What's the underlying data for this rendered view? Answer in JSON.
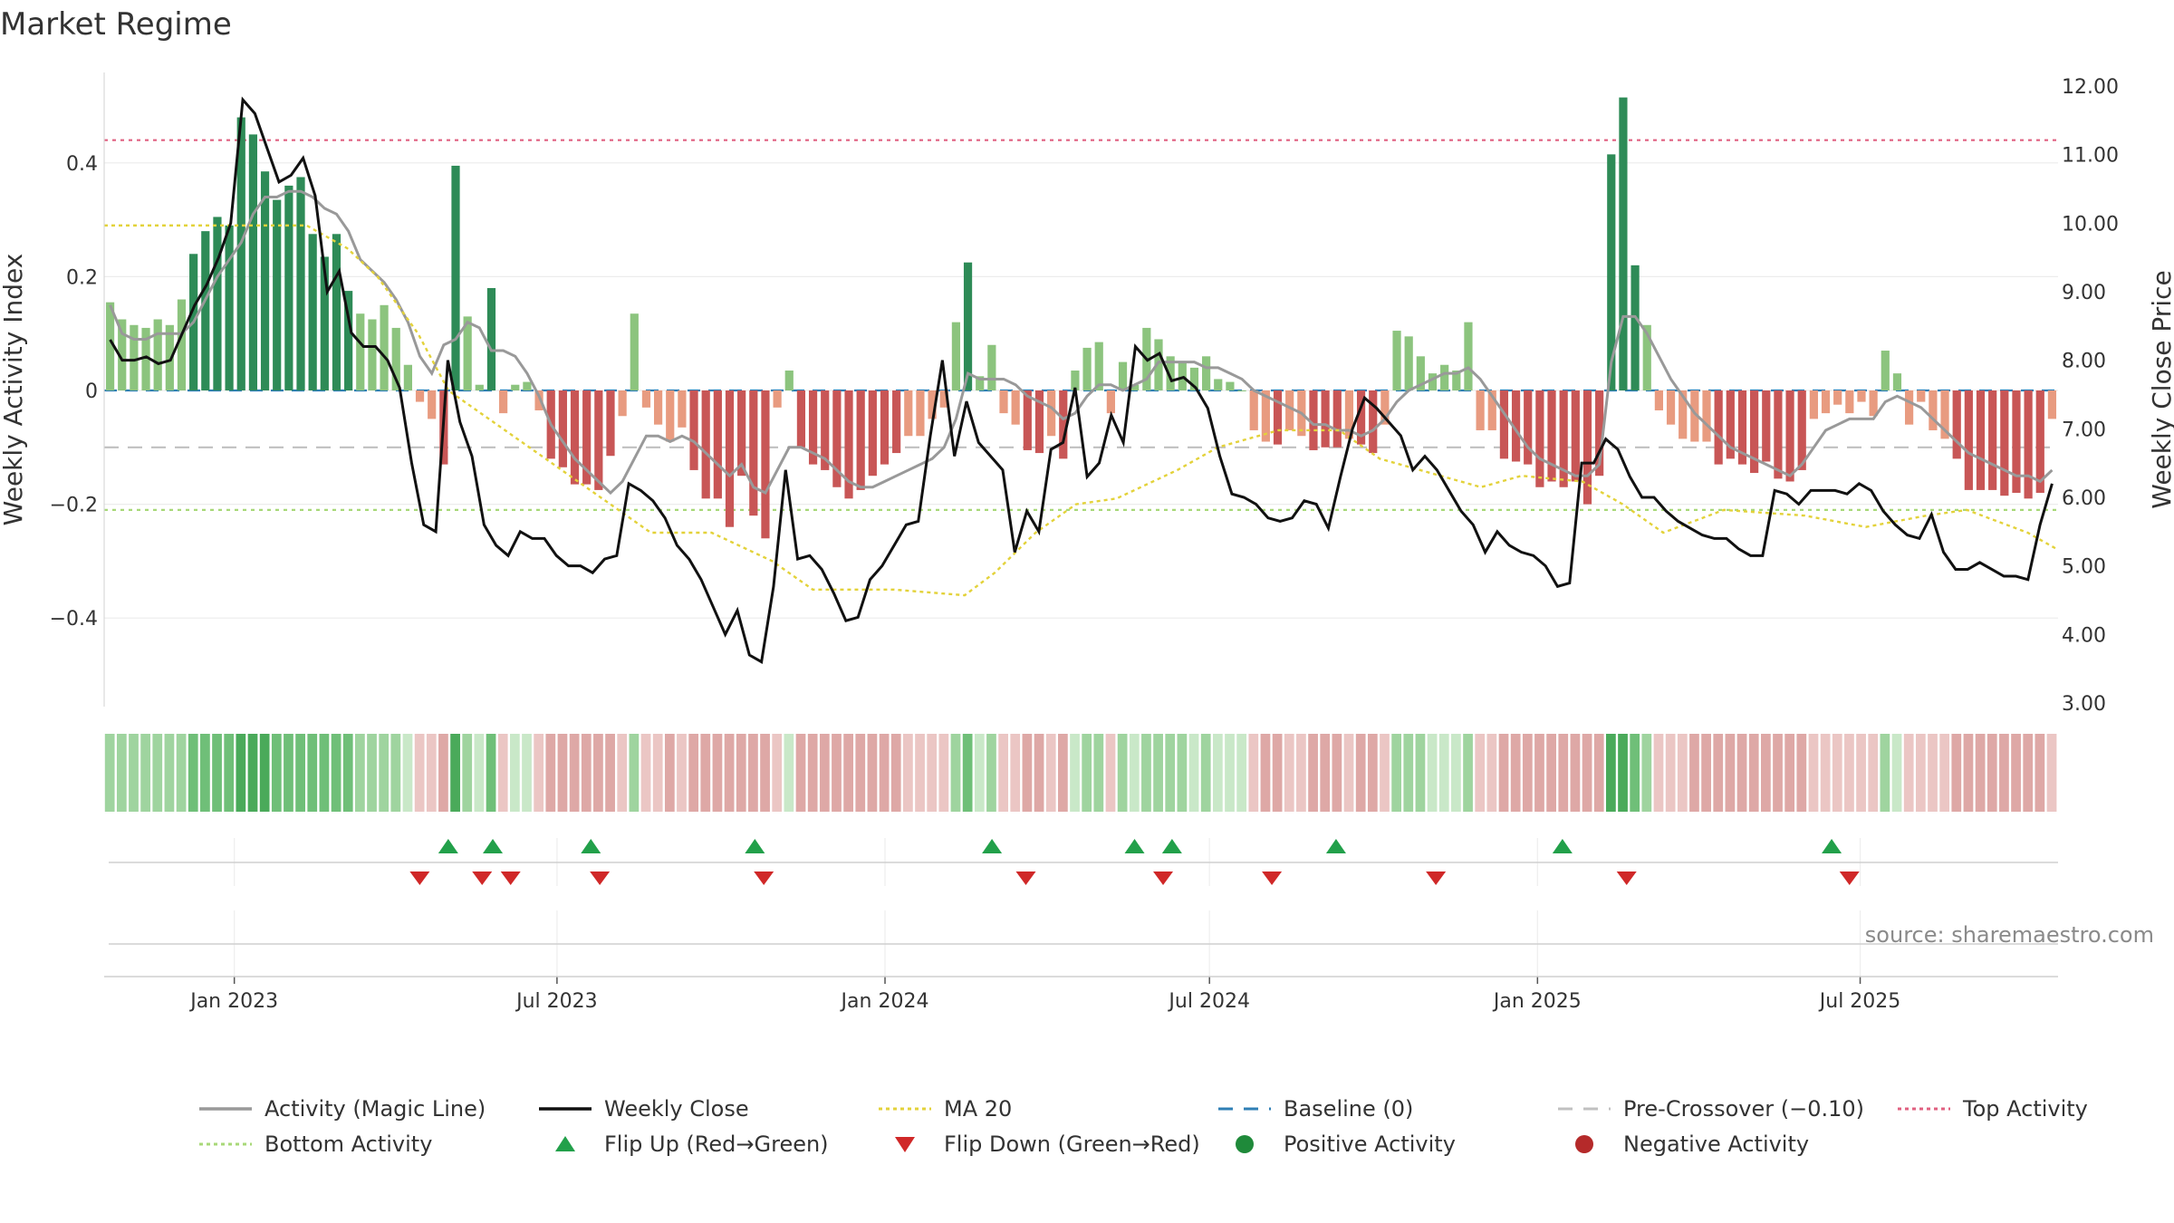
{
  "chart_data": {
    "type": "bar+line",
    "title": "Market Regime",
    "ylabel_left": "Weekly Activity Index",
    "ylabel_right": "Weekly Close Price",
    "source": "source: sharemaestro.com",
    "x_range": [
      "2022-10-20",
      "2025-10-20"
    ],
    "x_ticks": [
      {
        "date": "2023-01-01",
        "label": "Jan 2023"
      },
      {
        "date": "2023-07-01",
        "label": "Jul 2023"
      },
      {
        "date": "2024-01-01",
        "label": "Jan 2024"
      },
      {
        "date": "2024-07-01",
        "label": "Jul 2024"
      },
      {
        "date": "2025-01-01",
        "label": "Jan 2025"
      },
      {
        "date": "2025-07-01",
        "label": "Jul 2025"
      }
    ],
    "left_axis": {
      "ylim": [
        -0.56,
        0.56
      ],
      "ticks": [
        0.4,
        0.2,
        0,
        -0.2,
        -0.4
      ],
      "tick_labels": [
        "0.4",
        "0.2",
        "0",
        "−0.2",
        "−0.4"
      ]
    },
    "right_axis": {
      "ylim": [
        3.0,
        12.2
      ],
      "ticks": [
        12,
        11,
        10,
        9,
        8,
        7,
        6,
        5,
        4,
        3
      ],
      "tick_labels": [
        "12.00",
        "11.00",
        "10.00",
        "9.00",
        "8.00",
        "7.00",
        "6.00",
        "5.00",
        "4.00",
        "3.00"
      ]
    },
    "reference_lines": {
      "top_activity": 0.44,
      "bottom_activity": -0.21,
      "pre_crossover": -0.1,
      "baseline": 0
    },
    "ma20_left_equivalent": [
      [
        0.29,
        0
      ],
      [
        0.29,
        20
      ],
      [
        0.25,
        24
      ],
      [
        0.2,
        27
      ],
      [
        0.1,
        31
      ],
      [
        0,
        34
      ],
      [
        -0.05,
        38
      ],
      [
        -0.1,
        42
      ],
      [
        -0.15,
        46
      ],
      [
        -0.2,
        50
      ],
      [
        -0.25,
        54
      ],
      [
        -0.25,
        60
      ],
      [
        -0.3,
        66
      ],
      [
        -0.35,
        70
      ],
      [
        -0.35,
        78
      ],
      [
        -0.36,
        85
      ],
      [
        -0.32,
        88
      ],
      [
        -0.25,
        92
      ],
      [
        -0.2,
        96
      ],
      [
        -0.19,
        100
      ],
      [
        -0.14,
        106
      ],
      [
        -0.1,
        110
      ],
      [
        -0.07,
        116
      ],
      [
        -0.07,
        122
      ],
      [
        -0.12,
        126
      ],
      [
        -0.15,
        132
      ],
      [
        -0.17,
        136
      ],
      [
        -0.15,
        140
      ],
      [
        -0.16,
        146
      ],
      [
        -0.2,
        150
      ],
      [
        -0.25,
        154
      ],
      [
        -0.21,
        160
      ],
      [
        -0.22,
        168
      ],
      [
        -0.24,
        174
      ],
      [
        -0.22,
        180
      ],
      [
        -0.21,
        184
      ],
      [
        -0.25,
        190
      ],
      [
        -0.28,
        193
      ]
    ],
    "weekly_activity": [
      0.155,
      0.125,
      0.115,
      0.11,
      0.125,
      0.115,
      0.16,
      0.24,
      0.28,
      0.305,
      0.29,
      0.48,
      0.45,
      0.385,
      0.335,
      0.36,
      0.375,
      0.275,
      0.235,
      0.275,
      0.175,
      0.135,
      0.125,
      0.15,
      0.11,
      0.045,
      -0.02,
      -0.05,
      -0.13,
      0.395,
      0.13,
      0.01,
      0.18,
      -0.04,
      0.01,
      0.015,
      -0.035,
      -0.12,
      -0.135,
      -0.165,
      -0.165,
      -0.175,
      -0.115,
      -0.045,
      0.135,
      -0.03,
      -0.06,
      -0.09,
      -0.065,
      -0.14,
      -0.19,
      -0.19,
      -0.24,
      -0.15,
      -0.22,
      -0.26,
      -0.03,
      0.035,
      -0.1,
      -0.13,
      -0.14,
      -0.17,
      -0.19,
      -0.175,
      -0.15,
      -0.13,
      -0.11,
      -0.08,
      -0.08,
      -0.05,
      -0.03,
      0.12,
      0.225,
      0.025,
      0.08,
      -0.04,
      -0.06,
      -0.105,
      -0.11,
      -0.08,
      -0.12,
      0.035,
      0.075,
      0.085,
      -0.04,
      0.05,
      0.01,
      0.11,
      0.09,
      0.06,
      0.05,
      0.04,
      0.06,
      0.02,
      0.015,
      0,
      -0.07,
      -0.09,
      -0.095,
      -0.07,
      -0.08,
      -0.105,
      -0.1,
      -0.1,
      -0.085,
      -0.095,
      -0.11,
      -0.06,
      0.105,
      0.095,
      0.06,
      0.03,
      0.045,
      0.035,
      0.12,
      -0.07,
      -0.07,
      -0.12,
      -0.125,
      -0.13,
      -0.17,
      -0.16,
      -0.17,
      -0.16,
      -0.2,
      -0.15,
      0.415,
      0.515,
      0.22,
      0.115,
      -0.035,
      -0.06,
      -0.085,
      -0.09,
      -0.09,
      -0.13,
      -0.12,
      -0.13,
      -0.145,
      -0.125,
      -0.155,
      -0.16,
      -0.14,
      -0.05,
      -0.04,
      -0.025,
      -0.04,
      -0.02,
      -0.045,
      0.07,
      0.03,
      -0.06,
      -0.02,
      -0.07,
      -0.085,
      -0.12,
      -0.175,
      -0.175,
      -0.175,
      -0.185,
      -0.18,
      -0.19,
      -0.18,
      -0.05
    ],
    "magic_line": [
      0.15,
      0.1,
      0.09,
      0.09,
      0.1,
      0.1,
      0.1,
      0.12,
      0.16,
      0.2,
      0.23,
      0.26,
      0.31,
      0.34,
      0.34,
      0.35,
      0.35,
      0.34,
      0.32,
      0.31,
      0.28,
      0.23,
      0.21,
      0.19,
      0.16,
      0.12,
      0.06,
      0.03,
      0.08,
      0.09,
      0.12,
      0.11,
      0.07,
      0.07,
      0.06,
      0.03,
      -0.01,
      -0.06,
      -0.09,
      -0.12,
      -0.14,
      -0.16,
      -0.18,
      -0.16,
      -0.12,
      -0.08,
      -0.08,
      -0.09,
      -0.08,
      -0.09,
      -0.11,
      -0.13,
      -0.15,
      -0.13,
      -0.17,
      -0.18,
      -0.14,
      -0.1,
      -0.1,
      -0.11,
      -0.12,
      -0.14,
      -0.16,
      -0.17,
      -0.17,
      -0.16,
      -0.15,
      -0.14,
      -0.13,
      -0.12,
      -0.1,
      -0.05,
      0.03,
      0.02,
      0.02,
      0.02,
      0.01,
      -0.01,
      -0.02,
      -0.03,
      -0.05,
      -0.04,
      -0.01,
      0.01,
      0.01,
      0,
      0.01,
      0.02,
      0.05,
      0.05,
      0.05,
      0.05,
      0.04,
      0.04,
      0.03,
      0.02,
      0,
      -0.01,
      -0.02,
      -0.03,
      -0.04,
      -0.06,
      -0.06,
      -0.07,
      -0.07,
      -0.08,
      -0.07,
      -0.05,
      -0.02,
      0,
      0.01,
      0.02,
      0.03,
      0.03,
      0.04,
      0.02,
      -0.01,
      -0.04,
      -0.07,
      -0.1,
      -0.12,
      -0.13,
      -0.14,
      -0.15,
      -0.15,
      -0.13,
      0.05,
      0.13,
      0.13,
      0.1,
      0.06,
      0.02,
      -0.01,
      -0.04,
      -0.06,
      -0.08,
      -0.1,
      -0.11,
      -0.12,
      -0.13,
      -0.14,
      -0.15,
      -0.13,
      -0.1,
      -0.07,
      -0.06,
      -0.05,
      -0.05,
      -0.05,
      -0.02,
      -0.01,
      -0.02,
      -0.03,
      -0.05,
      -0.07,
      -0.09,
      -0.11,
      -0.12,
      -0.13,
      -0.14,
      -0.15,
      -0.15,
      -0.16,
      -0.14
    ],
    "weekly_close": [
      8.3,
      8.0,
      8.0,
      8.05,
      7.95,
      8.0,
      8.4,
      8.8,
      9.1,
      9.5,
      10.0,
      11.8,
      11.6,
      11.1,
      10.6,
      10.7,
      10.95,
      10.4,
      9.0,
      9.3,
      8.4,
      8.2,
      8.2,
      8.0,
      7.6,
      6.5,
      5.6,
      5.5,
      8.0,
      7.1,
      6.6,
      5.6,
      5.3,
      5.15,
      5.5,
      5.4,
      5.4,
      5.15,
      5.0,
      5.0,
      4.9,
      5.1,
      5.15,
      6.2,
      6.1,
      5.95,
      5.7,
      5.3,
      5.1,
      4.8,
      4.4,
      4.0,
      4.35,
      3.7,
      3.6,
      4.7,
      6.4,
      5.1,
      5.15,
      4.95,
      4.6,
      4.2,
      4.25,
      4.8,
      5.0,
      5.3,
      5.6,
      5.65,
      6.9,
      8.0,
      6.6,
      7.4,
      6.8,
      6.6,
      6.4,
      5.2,
      5.8,
      5.5,
      6.7,
      6.8,
      7.6,
      6.3,
      6.5,
      7.2,
      6.8,
      8.2,
      8.0,
      8.1,
      7.7,
      7.75,
      7.6,
      7.3,
      6.6,
      6.05,
      6.0,
      5.9,
      5.7,
      5.65,
      5.7,
      5.95,
      5.9,
      5.55,
      6.3,
      7.0,
      7.45,
      7.3,
      7.1,
      6.9,
      6.4,
      6.6,
      6.4,
      6.1,
      5.8,
      5.6,
      5.2,
      5.5,
      5.3,
      5.2,
      5.15,
      5.0,
      4.7,
      4.75,
      6.5,
      6.5,
      6.85,
      6.7,
      6.3,
      6.0,
      6.0,
      5.8,
      5.65,
      5.55,
      5.45,
      5.4,
      5.4,
      5.25,
      5.15,
      5.15,
      6.1,
      6.05,
      5.9,
      6.1,
      6.1,
      6.1,
      6.05,
      6.2,
      6.1,
      5.8,
      5.6,
      5.45,
      5.4,
      5.75,
      5.2,
      4.95,
      4.95,
      5.05,
      4.95,
      4.85,
      4.85,
      4.8,
      5.6,
      6.2
    ],
    "flips_up": [
      "2023-05-01",
      "2023-05-26",
      "2023-07-20",
      "2023-10-20",
      "2024-03-01",
      "2024-05-20",
      "2024-06-10",
      "2024-09-10",
      "2025-01-15",
      "2025-06-15"
    ],
    "flips_down": [
      "2023-04-15",
      "2023-05-20",
      "2023-06-05",
      "2023-07-25",
      "2023-10-25",
      "2024-03-20",
      "2024-06-05",
      "2024-08-05",
      "2024-11-05",
      "2025-02-20",
      "2025-06-25"
    ],
    "colors": {
      "bar_strong_pos": "#2e8b57",
      "bar_weak_pos": "#8cc47e",
      "bar_strong_neg": "#c85656",
      "bar_weak_neg": "#e89b80",
      "magic_line": "#999999",
      "weekly_close": "#111111",
      "ma20": "#e3d23a",
      "baseline": "#2f7fb5",
      "pre_crossover": "#c0c0c0",
      "top_activity": "#e06080",
      "bottom_activity": "#a8d878",
      "flip_up": "#22a04a",
      "flip_down": "#d02828",
      "positive_activity": "#1f8a3a",
      "negative_activity": "#b52a2a"
    },
    "legend": [
      {
        "label": "Activity (Magic Line)",
        "style": "line",
        "color_key": "magic_line"
      },
      {
        "label": "Weekly Close",
        "style": "line",
        "color_key": "weekly_close"
      },
      {
        "label": "MA 20",
        "style": "dotted",
        "color_key": "ma20"
      },
      {
        "label": "Baseline (0)",
        "style": "dashed",
        "color_key": "baseline"
      },
      {
        "label": "Pre-Crossover (−0.10)",
        "style": "dashed",
        "color_key": "pre_crossover"
      },
      {
        "label": "Top Activity",
        "style": "dotted",
        "color_key": "top_activity"
      },
      {
        "label": "Bottom Activity",
        "style": "dotted",
        "color_key": "bottom_activity"
      },
      {
        "label": "Flip Up (Red→Green)",
        "style": "tri-up",
        "color_key": "flip_up"
      },
      {
        "label": "Flip Down (Green→Red)",
        "style": "tri-down",
        "color_key": "flip_down"
      },
      {
        "label": "Positive Activity",
        "style": "dot",
        "color_key": "positive_activity"
      },
      {
        "label": "Negative Activity",
        "style": "dot",
        "color_key": "negative_activity"
      }
    ]
  }
}
